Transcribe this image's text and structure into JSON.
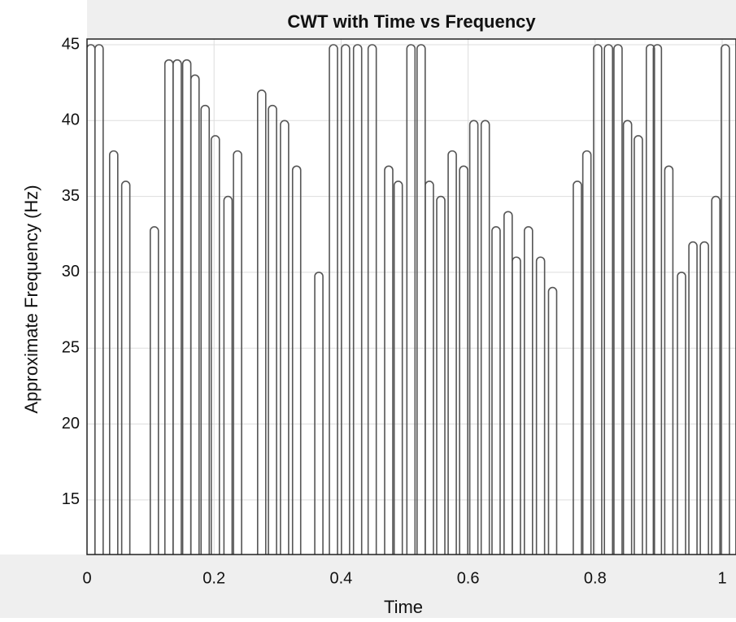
{
  "chart_data": {
    "type": "contour",
    "title": "CWT with Time vs Frequency",
    "xlabel": "Time",
    "ylabel": "Approximate Frequency (Hz)",
    "x": [
      0.006,
      0.019,
      0.042,
      0.061,
      0.106,
      0.129,
      0.142,
      0.157,
      0.17,
      0.186,
      0.202,
      0.222,
      0.237,
      0.275,
      0.292,
      0.311,
      0.33,
      0.365,
      0.388,
      0.407,
      0.426,
      0.449,
      0.475,
      0.49,
      0.51,
      0.526,
      0.539,
      0.557,
      0.575,
      0.593,
      0.609,
      0.627,
      0.644,
      0.663,
      0.676,
      0.695,
      0.714,
      0.733,
      0.772,
      0.787,
      0.804,
      0.821,
      0.836,
      0.851,
      0.868,
      0.887,
      0.898,
      0.916,
      0.936,
      0.954,
      0.972,
      0.99,
      1.005
    ],
    "values": [
      45,
      45,
      38,
      36,
      33,
      44,
      44,
      44,
      43,
      41,
      39,
      35,
      38,
      42,
      41,
      40,
      37,
      30,
      45,
      45,
      45,
      45,
      37,
      36,
      45,
      45,
      36,
      35,
      38,
      37,
      40,
      40,
      33,
      34,
      31,
      33,
      31,
      29,
      36,
      38,
      45,
      45,
      45,
      40,
      39,
      45,
      45,
      37,
      30,
      32,
      32,
      35,
      45
    ],
    "color": "#555555",
    "xlim": [
      0,
      1.022
    ],
    "ylim": [
      11.4,
      45
    ],
    "xticks": [
      0,
      0.2,
      0.4,
      0.6,
      0.8,
      1
    ],
    "yticks": [
      15,
      20,
      25,
      30,
      35,
      40,
      45
    ],
    "grid": true
  }
}
